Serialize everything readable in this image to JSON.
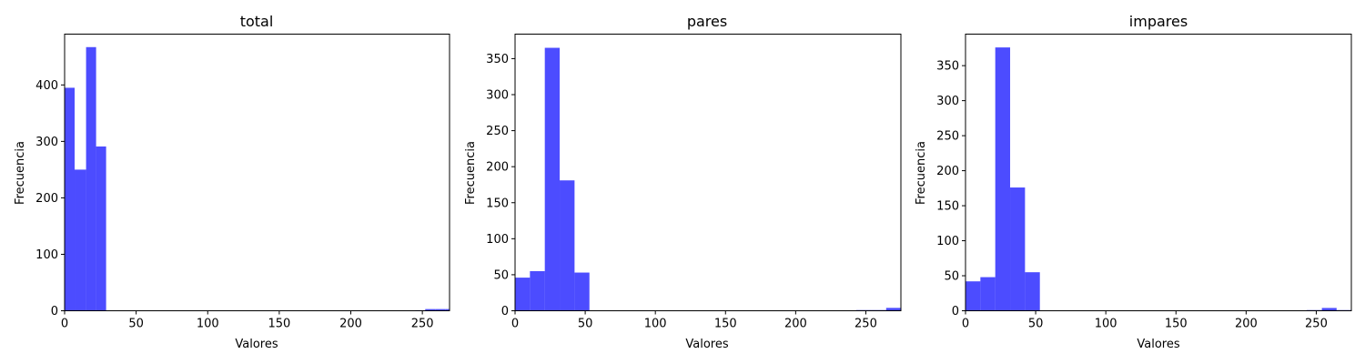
{
  "chart_data": [
    {
      "type": "bar",
      "title": "total",
      "xlabel": "Valores",
      "ylabel": "Frecuencia",
      "xlim": [
        0,
        269
      ],
      "ylim": [
        0,
        490
      ],
      "xticks": [
        0,
        50,
        100,
        150,
        200,
        250
      ],
      "yticks": [
        0,
        100,
        200,
        300,
        400
      ],
      "color": "#0000ff",
      "bins": [
        {
          "x0": 0,
          "x1": 7,
          "count": 395
        },
        {
          "x0": 7,
          "x1": 15,
          "count": 250
        },
        {
          "x0": 15,
          "x1": 22,
          "count": 467
        },
        {
          "x0": 22,
          "x1": 29,
          "count": 291
        },
        {
          "x0": 245,
          "x1": 252,
          "count": 1
        },
        {
          "x0": 252,
          "x1": 259,
          "count": 3
        },
        {
          "x0": 259,
          "x1": 266,
          "count": 3
        },
        {
          "x0": 266,
          "x1": 269,
          "count": 3
        }
      ]
    },
    {
      "type": "bar",
      "title": "pares",
      "xlabel": "Valores",
      "ylabel": "Frecuencia",
      "xlim": [
        0,
        275
      ],
      "ylim": [
        0,
        384
      ],
      "xticks": [
        0,
        50,
        100,
        150,
        200,
        250
      ],
      "yticks": [
        0,
        50,
        100,
        150,
        200,
        250,
        300,
        350
      ],
      "color": "#0000ff",
      "bins": [
        {
          "x0": 0,
          "x1": 10.6,
          "count": 46
        },
        {
          "x0": 10.6,
          "x1": 21.2,
          "count": 55
        },
        {
          "x0": 21.2,
          "x1": 31.8,
          "count": 365
        },
        {
          "x0": 31.8,
          "x1": 42.4,
          "count": 181
        },
        {
          "x0": 42.4,
          "x1": 53,
          "count": 53
        },
        {
          "x0": 243,
          "x1": 254,
          "count": 1
        },
        {
          "x0": 254,
          "x1": 264.5,
          "count": 1
        },
        {
          "x0": 264.5,
          "x1": 275,
          "count": 4
        }
      ]
    },
    {
      "type": "bar",
      "title": "impares",
      "xlabel": "Valores",
      "ylabel": "Frecuencia",
      "xlim": [
        0,
        275
      ],
      "ylim": [
        0,
        395
      ],
      "xticks": [
        0,
        50,
        100,
        150,
        200,
        250
      ],
      "yticks": [
        0,
        50,
        100,
        150,
        200,
        250,
        300,
        350
      ],
      "color": "#0000ff",
      "bins": [
        {
          "x0": 0,
          "x1": 10.6,
          "count": 42
        },
        {
          "x0": 10.6,
          "x1": 21.2,
          "count": 48
        },
        {
          "x0": 21.2,
          "x1": 31.8,
          "count": 376
        },
        {
          "x0": 31.8,
          "x1": 42.4,
          "count": 176
        },
        {
          "x0": 42.4,
          "x1": 53,
          "count": 55
        },
        {
          "x0": 243,
          "x1": 254,
          "count": 1
        },
        {
          "x0": 254,
          "x1": 264.5,
          "count": 4
        },
        {
          "x0": 264.5,
          "x1": 275,
          "count": 1
        }
      ]
    }
  ]
}
